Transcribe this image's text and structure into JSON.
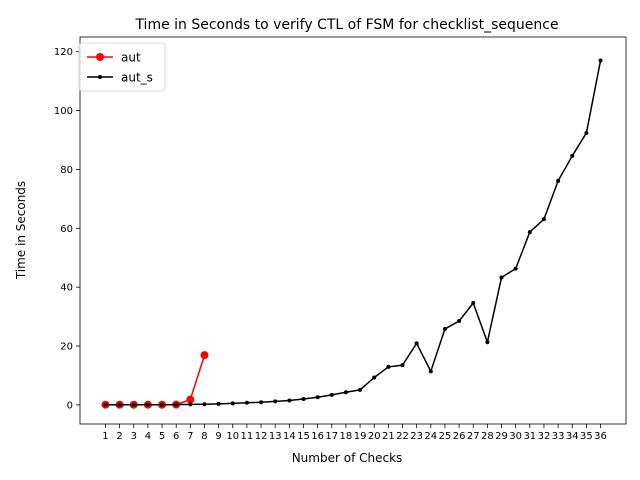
{
  "chart_data": {
    "type": "line",
    "title": "Time in Seconds to verify CTL of FSM for checklist_sequence",
    "xlabel": "Number of Checks",
    "ylabel": "Time in Seconds",
    "x": [
      1,
      2,
      3,
      4,
      5,
      6,
      7,
      8,
      9,
      10,
      11,
      12,
      13,
      14,
      15,
      16,
      17,
      18,
      19,
      20,
      21,
      22,
      23,
      24,
      25,
      26,
      27,
      28,
      29,
      30,
      31,
      32,
      33,
      34,
      35,
      36
    ],
    "xticks": [
      "1",
      "2",
      "3",
      "4",
      "5",
      "6",
      "7",
      "8",
      "9",
      "10",
      "11",
      "12",
      "13",
      "14",
      "15",
      "16",
      "17",
      "18",
      "19",
      "20",
      "21",
      "22",
      "23",
      "24",
      "25",
      "26",
      "27",
      "28",
      "29",
      "30",
      "31",
      "32",
      "33",
      "34",
      "35",
      "36"
    ],
    "yticks": [
      "0",
      "20",
      "40",
      "60",
      "80",
      "100",
      "120"
    ],
    "ylim": [
      -6.5,
      125
    ],
    "xlim": [
      -0.8,
      37.8
    ],
    "legend_position": "upper-left",
    "grid": false,
    "series": [
      {
        "name": "aut",
        "color": "#ff0000",
        "marker": "circle-large",
        "x": [
          1,
          2,
          3,
          4,
          5,
          6,
          7,
          8
        ],
        "values": [
          0.05,
          0.05,
          0.05,
          0.05,
          0.05,
          0.1,
          1.8,
          16.9
        ]
      },
      {
        "name": "aut_s",
        "color": "#000000",
        "marker": "circle-small",
        "x": [
          1,
          2,
          3,
          4,
          5,
          6,
          7,
          8,
          9,
          10,
          11,
          12,
          13,
          14,
          15,
          16,
          17,
          18,
          19,
          20,
          21,
          22,
          23,
          24,
          25,
          26,
          27,
          28,
          29,
          30,
          31,
          32,
          33,
          34,
          35,
          36
        ],
        "values": [
          0.05,
          0.05,
          0.05,
          0.05,
          0.05,
          0.1,
          0.15,
          0.2,
          0.35,
          0.5,
          0.7,
          0.9,
          1.2,
          1.5,
          2.0,
          2.6,
          3.4,
          4.3,
          5.1,
          9.3,
          12.9,
          13.5,
          20.9,
          11.4,
          25.8,
          28.5,
          34.6,
          21.3,
          43.3,
          46.3,
          58.7,
          63.1,
          76.1,
          84.6,
          92.4,
          117.0
        ]
      }
    ]
  }
}
